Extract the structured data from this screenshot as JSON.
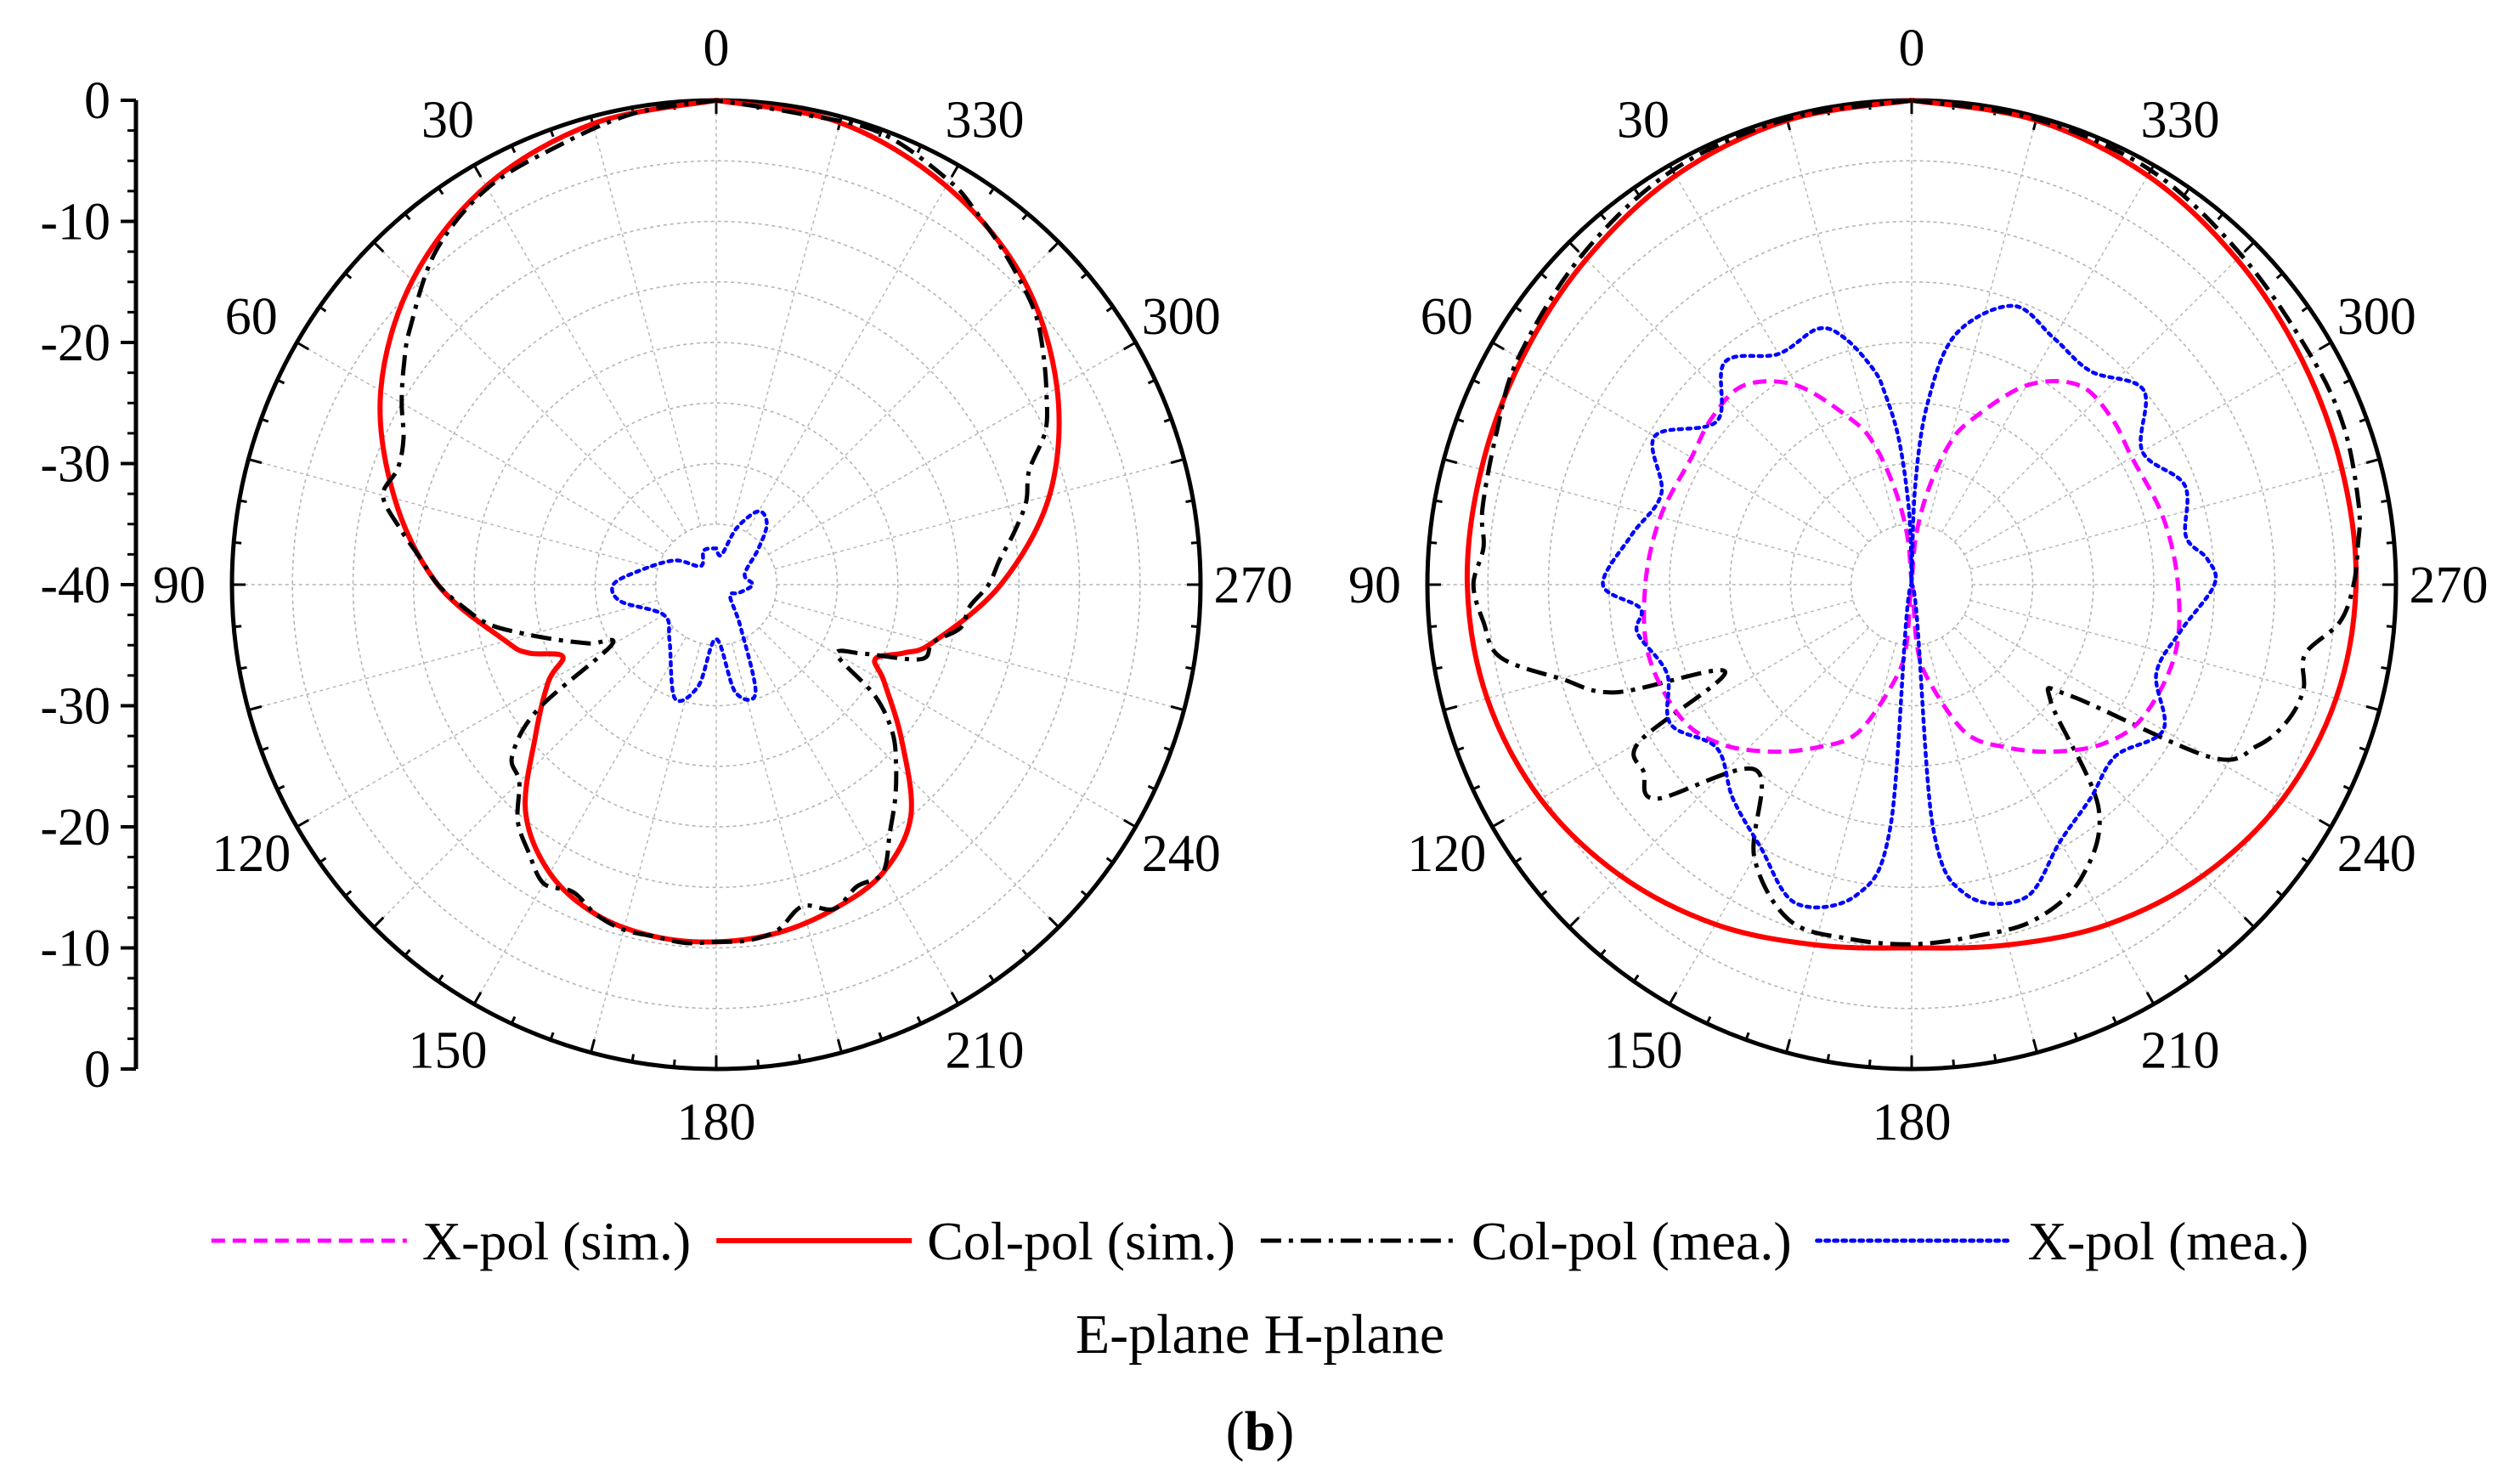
{
  "figure": {
    "caption_open": "(",
    "caption_letter": "b",
    "caption_close": ")",
    "plane_title": "E-plane H-plane"
  },
  "colors": {
    "x_pol_sim": "#ff00ff",
    "col_pol_sim": "#ff0000",
    "col_pol_mea": "#000000",
    "x_pol_mea": "#0000ff",
    "grid": "#b4b4b4",
    "axis": "#000000"
  },
  "legend": [
    {
      "key": "x_pol_sim",
      "label": "X-pol (sim.)",
      "style": "dashed"
    },
    {
      "key": "col_pol_sim",
      "label": "Col-pol (sim.)",
      "style": "solid"
    },
    {
      "key": "col_pol_mea",
      "label": "Col-pol (mea.)",
      "style": "dashdot"
    },
    {
      "key": "x_pol_mea",
      "label": "X-pol (mea.)",
      "style": "dotted"
    }
  ],
  "chart_data": [
    {
      "type": "polar",
      "panel": "E-plane",
      "angle_ticks": [
        "0",
        "30",
        "60",
        "90",
        "120",
        "150",
        "180",
        "210",
        "240",
        "270",
        "300",
        "330"
      ],
      "angle_direction": "counterclockwise, 0 at top",
      "radial_range_db": [
        -40,
        0
      ],
      "radial_scale_labels": [
        "0",
        "-10",
        "-20",
        "-30",
        "-40",
        "-30",
        "-20",
        "-10",
        "0"
      ],
      "grid": true,
      "series": [
        {
          "key": "col_pol_sim",
          "angles": [
            0,
            15,
            30,
            45,
            60,
            75,
            90,
            105,
            110,
            115,
            120,
            130,
            140,
            150,
            160,
            170,
            180,
            190,
            200,
            210,
            220,
            230,
            240,
            245,
            250,
            255,
            270,
            285,
            300,
            315,
            330,
            345,
            360
          ],
          "values": [
            0,
            -0.6,
            -2,
            -4.5,
            -8,
            -12.5,
            -17,
            -22,
            -23.5,
            -26,
            -24,
            -20.5,
            -15.5,
            -12.5,
            -11,
            -10.5,
            -10.5,
            -10.8,
            -11.5,
            -12.5,
            -15,
            -20,
            -24,
            -25.5,
            -23.5,
            -21.5,
            -16.5,
            -11.5,
            -7.5,
            -4.2,
            -2,
            -0.5,
            0
          ]
        },
        {
          "key": "col_pol_mea",
          "angles": [
            0,
            10,
            20,
            30,
            40,
            50,
            55,
            60,
            65,
            70,
            75,
            80,
            85,
            90,
            95,
            100,
            105,
            110,
            115,
            120,
            125,
            130,
            135,
            140,
            145,
            150,
            155,
            160,
            165,
            170,
            175,
            180,
            185,
            190,
            195,
            200,
            205,
            210,
            215,
            220,
            225,
            230,
            235,
            240,
            245,
            250,
            255,
            260,
            265,
            270,
            275,
            280,
            285,
            290,
            295,
            300,
            305,
            310,
            315,
            320,
            325,
            330,
            340,
            350,
            360
          ],
          "values": [
            0,
            -0.5,
            -1.5,
            -2.2,
            -4,
            -7,
            -8.5,
            -10,
            -11.5,
            -12,
            -11.5,
            -13.5,
            -15.5,
            -17,
            -19,
            -21,
            -24,
            -26.5,
            -28.5,
            -30,
            -22,
            -18,
            -17,
            -14.5,
            -13,
            -11.5,
            -12,
            -11,
            -10.5,
            -10.5,
            -10.3,
            -10.5,
            -10.5,
            -11,
            -12.5,
            -11.5,
            -12.5,
            -12.5,
            -15,
            -17,
            -19,
            -21,
            -24,
            -28.5,
            -26.5,
            -22,
            -21.5,
            -19.5,
            -19,
            -17.5,
            -16.5,
            -15,
            -13.5,
            -12.5,
            -10,
            -8.5,
            -7,
            -5.5,
            -4.5,
            -3.5,
            -2.5,
            -1.5,
            -0.3,
            -0.5,
            0
          ]
        },
        {
          "key": "x_pol_mea",
          "angles": [
            0,
            20,
            40,
            60,
            80,
            90,
            100,
            120,
            140,
            160,
            170,
            180,
            190,
            200,
            210,
            230,
            250,
            270,
            290,
            310,
            320,
            330,
            340,
            350,
            360
          ],
          "values": [
            -37,
            -37,
            -38,
            -36,
            -33.5,
            -31.5,
            -32,
            -35,
            -34,
            -30,
            -31.5,
            -35.5,
            -31,
            -30.5,
            -36,
            -38.5,
            -38,
            -37,
            -37.5,
            -35.5,
            -33.5,
            -33,
            -35,
            -37.5,
            -37
          ]
        }
      ]
    },
    {
      "type": "polar",
      "panel": "H-plane",
      "angle_ticks": [
        "0",
        "30",
        "60",
        "90",
        "120",
        "150",
        "180",
        "210",
        "240",
        "270",
        "300",
        "330"
      ],
      "angle_direction": "counterclockwise, 0 at top",
      "radial_range_db": [
        -40,
        0
      ],
      "grid": true,
      "series": [
        {
          "key": "col_pol_sim",
          "angles": [
            0,
            15,
            30,
            45,
            60,
            75,
            90,
            105,
            120,
            135,
            150,
            165,
            180,
            195,
            210,
            225,
            240,
            255,
            270,
            285,
            300,
            315,
            330,
            345,
            360
          ],
          "values": [
            0,
            -0.3,
            -1,
            -2,
            -2.8,
            -3.2,
            -3.3,
            -3.7,
            -4.6,
            -6,
            -7.6,
            -9.2,
            -10,
            -9.2,
            -7.6,
            -6,
            -4.6,
            -3.7,
            -3.3,
            -3.2,
            -2.8,
            -2,
            -1,
            -0.3,
            0
          ]
        },
        {
          "key": "col_pol_mea",
          "angles": [
            0,
            15,
            30,
            45,
            60,
            70,
            80,
            85,
            90,
            95,
            100,
            105,
            110,
            115,
            120,
            125,
            130,
            140,
            150,
            160,
            170,
            180,
            190,
            200,
            210,
            220,
            230,
            235,
            240,
            245,
            250,
            255,
            260,
            265,
            270,
            275,
            280,
            290,
            300,
            315,
            330,
            345,
            360
          ],
          "values": [
            0,
            -0.2,
            -0.5,
            -1.5,
            -2.5,
            -3.5,
            -4,
            -4.5,
            -3.8,
            -4.5,
            -5.5,
            -10,
            -14,
            -23,
            -14,
            -13,
            -12.5,
            -20,
            -14,
            -10.5,
            -10.3,
            -10.3,
            -10.5,
            -10.5,
            -12,
            -16,
            -25,
            -24,
            -11.5,
            -8.5,
            -7,
            -6.5,
            -7,
            -4.5,
            -3.5,
            -3,
            -2.5,
            -2,
            -2,
            -1.5,
            -0.5,
            -0.2,
            0
          ]
        },
        {
          "key": "x_pol_sim",
          "angles": [
            0,
            5,
            10,
            15,
            20,
            30,
            40,
            50,
            60,
            75,
            90,
            105,
            120,
            130,
            140,
            150,
            160,
            170,
            175,
            180,
            185,
            190,
            200,
            210,
            220,
            230,
            240,
            255,
            270,
            285,
            300,
            310,
            320,
            330,
            340,
            345,
            350,
            355,
            360
          ],
          "values": [
            -40,
            -36,
            -32,
            -28,
            -25.5,
            -21,
            -18.5,
            -18.5,
            -19,
            -18.5,
            -18,
            -17.5,
            -18,
            -19.5,
            -22,
            -24.5,
            -27,
            -32,
            -35,
            -40,
            -35,
            -32,
            -27,
            -24.5,
            -22,
            -19.5,
            -18,
            -17.5,
            -18,
            -18.5,
            -19,
            -18.5,
            -18.5,
            -21,
            -25.5,
            -28,
            -32,
            -36,
            -40
          ]
        },
        {
          "key": "x_pol_mea",
          "angles": [
            0,
            2,
            5,
            8,
            10,
            15,
            20,
            30,
            40,
            50,
            60,
            70,
            80,
            90,
            95,
            100,
            110,
            120,
            130,
            140,
            150,
            160,
            170,
            175,
            180,
            185,
            190,
            200,
            210,
            220,
            230,
            240,
            250,
            260,
            270,
            275,
            280,
            290,
            300,
            310,
            320,
            330,
            340,
            350,
            355,
            358,
            360
          ],
          "values": [
            -40,
            -34,
            -28,
            -24,
            -22,
            -19,
            -17.5,
            -18,
            -16,
            -19,
            -15.5,
            -18,
            -16.5,
            -14.5,
            -17.5,
            -17,
            -18.5,
            -17,
            -19,
            -17,
            -15,
            -12,
            -14,
            -20,
            -40,
            -20,
            -14,
            -12.5,
            -15.5,
            -17,
            -18,
            -16,
            -18.5,
            -17.5,
            -15,
            -15.5,
            -17,
            -16,
            -18,
            -15,
            -17,
            -16.5,
            -15.5,
            -19,
            -25,
            -32,
            -40
          ]
        }
      ]
    }
  ]
}
